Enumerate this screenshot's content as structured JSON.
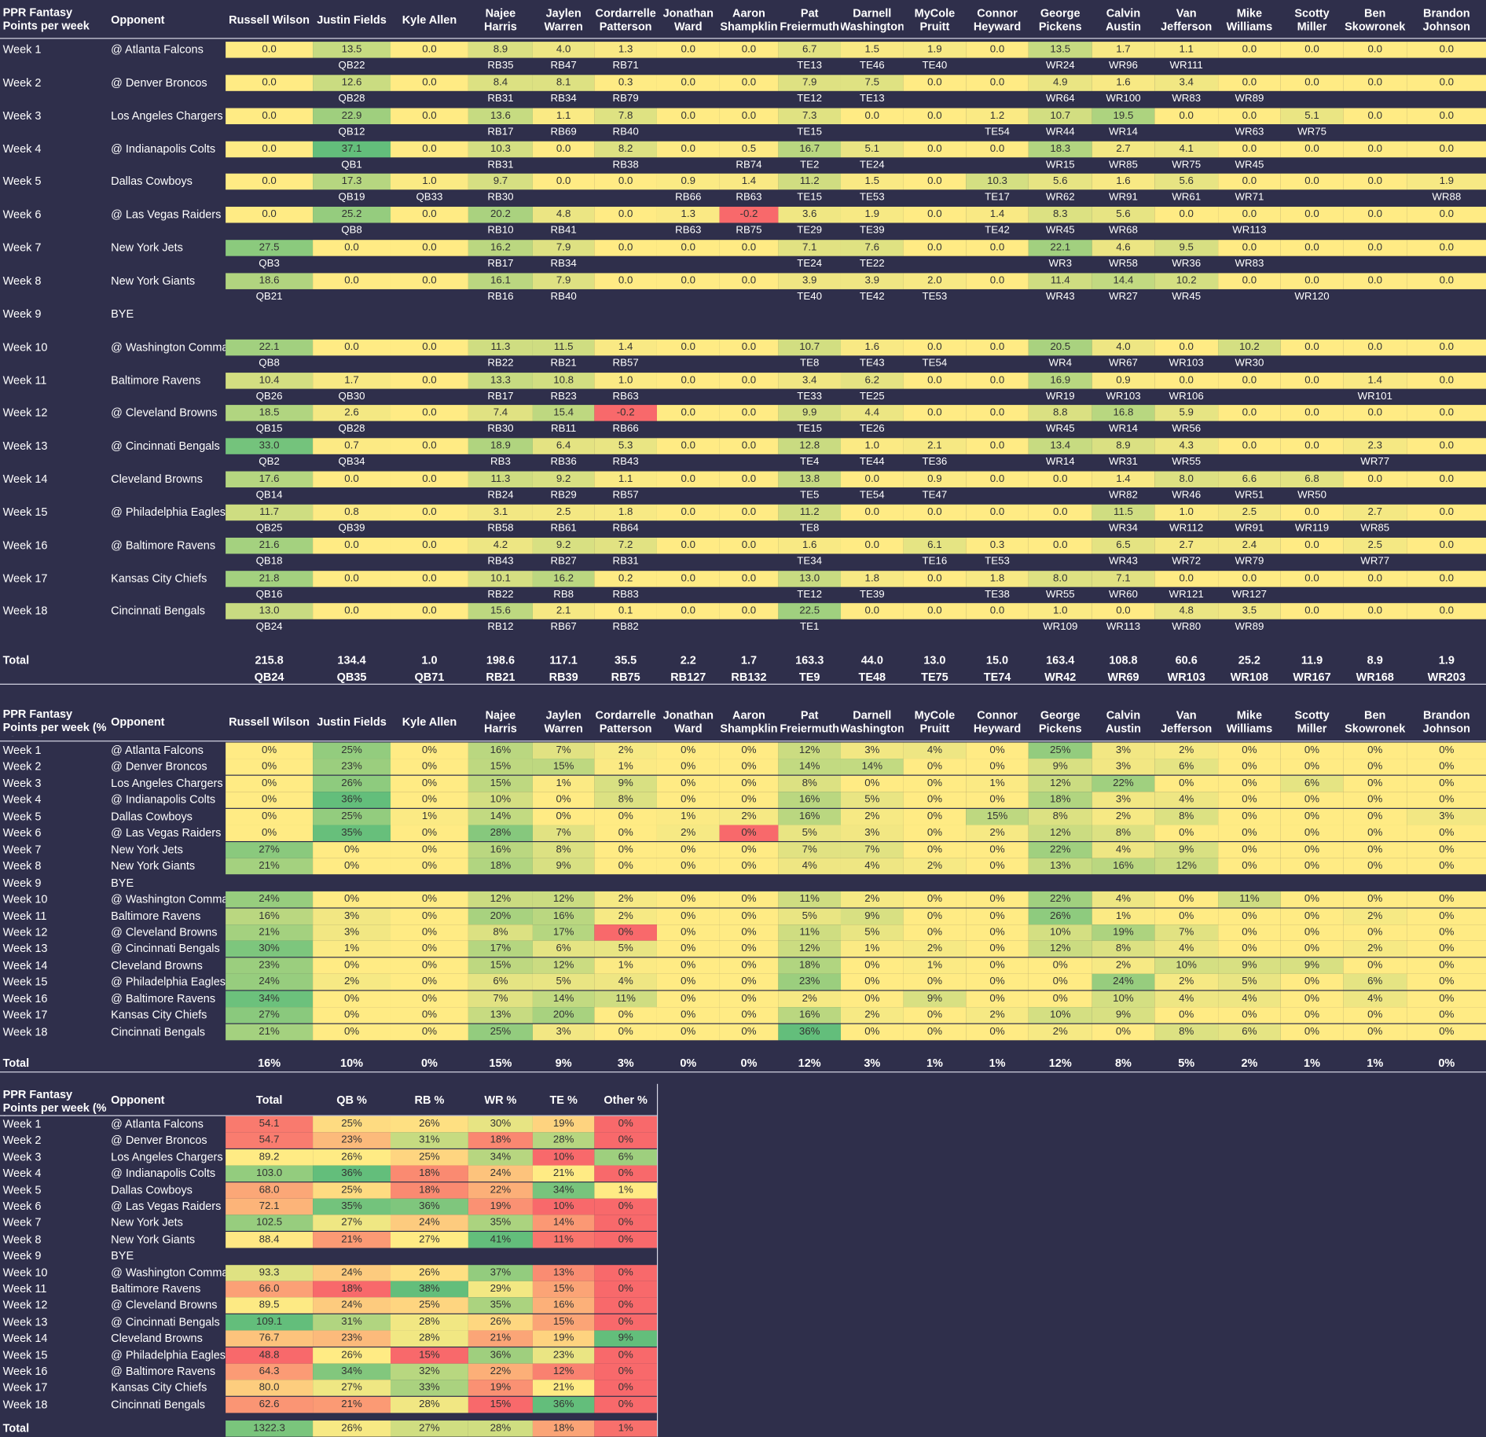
{
  "weeks": [
    "Week 1",
    "Week 2",
    "Week 3",
    "Week 4",
    "Week 5",
    "Week 6",
    "Week 7",
    "Week 8",
    "Week 9",
    "Week 10",
    "Week 11",
    "Week 12",
    "Week 13",
    "Week 14",
    "Week 15",
    "Week 16",
    "Week 17",
    "Week 18"
  ],
  "opponents": [
    "@ Atlanta Falcons",
    "@ Denver Broncos",
    "Los Angeles Chargers",
    "@ Indianapolis Colts",
    "Dallas Cowboys",
    "@ Las Vegas Raiders",
    "New York Jets",
    "New York Giants",
    "BYE",
    "@ Washington Commanders",
    "Baltimore Ravens",
    "@ Cleveland Browns",
    "@ Cincinnati Bengals",
    "Cleveland Browns",
    "@ Philadelphia Eagles",
    "@ Baltimore Ravens",
    "Kansas City Chiefs",
    "Cincinnati Bengals"
  ],
  "opponent_header": "Opponent",
  "total_label": "Total",
  "players": [
    "Russell Wilson",
    "Justin Fields",
    "Kyle Allen",
    "Najee Harris",
    "Jaylen Warren",
    "Cordarrelle Patterson",
    "Jonathan Ward",
    "Aaron Shampklin",
    "Pat Freiermuth",
    "Darnell Washington",
    "MyCole Pruitt",
    "Connor Heyward",
    "George Pickens",
    "Calvin Austin",
    "Van Jefferson",
    "Mike Williams",
    "Scotty Miller",
    "Ben Skowronek",
    "Brandon Johnson"
  ],
  "colors": {
    "background": "#2f2f4b",
    "yellow": "#ffeb84",
    "green": "#63be7b",
    "red": "#f8696b"
  },
  "table1": {
    "title": "PPR Fantasy Points per week",
    "points": [
      [
        "0.0",
        "13.5",
        "0.0",
        "8.9",
        "4.0",
        "1.3",
        "0.0",
        "0.0",
        "6.7",
        "1.5",
        "1.9",
        "0.0",
        "13.5",
        "1.7",
        "1.1",
        "0.0",
        "0.0",
        "0.0",
        "0.0"
      ],
      [
        "0.0",
        "12.6",
        "0.0",
        "8.4",
        "8.1",
        "0.3",
        "0.0",
        "0.0",
        "7.9",
        "7.5",
        "0.0",
        "0.0",
        "4.9",
        "1.6",
        "3.4",
        "0.0",
        "0.0",
        "0.0",
        "0.0"
      ],
      [
        "0.0",
        "22.9",
        "0.0",
        "13.6",
        "1.1",
        "7.8",
        "0.0",
        "0.0",
        "7.3",
        "0.0",
        "0.0",
        "1.2",
        "10.7",
        "19.5",
        "0.0",
        "0.0",
        "5.1",
        "0.0",
        "0.0"
      ],
      [
        "0.0",
        "37.1",
        "0.0",
        "10.3",
        "0.0",
        "8.2",
        "0.0",
        "0.5",
        "16.7",
        "5.1",
        "0.0",
        "0.0",
        "18.3",
        "2.7",
        "4.1",
        "0.0",
        "0.0",
        "0.0",
        "0.0"
      ],
      [
        "0.0",
        "17.3",
        "1.0",
        "9.7",
        "0.0",
        "0.0",
        "0.9",
        "1.4",
        "11.2",
        "1.5",
        "0.0",
        "10.3",
        "5.6",
        "1.6",
        "5.6",
        "0.0",
        "0.0",
        "0.0",
        "1.9"
      ],
      [
        "0.0",
        "25.2",
        "0.0",
        "20.2",
        "4.8",
        "0.0",
        "1.3",
        "-0.2",
        "3.6",
        "1.9",
        "0.0",
        "1.4",
        "8.3",
        "5.6",
        "0.0",
        "0.0",
        "0.0",
        "0.0",
        "0.0"
      ],
      [
        "27.5",
        "0.0",
        "0.0",
        "16.2",
        "7.9",
        "0.0",
        "0.0",
        "0.0",
        "7.1",
        "7.6",
        "0.0",
        "0.0",
        "22.1",
        "4.6",
        "9.5",
        "0.0",
        "0.0",
        "0.0",
        "0.0"
      ],
      [
        "18.6",
        "0.0",
        "0.0",
        "16.1",
        "7.9",
        "0.0",
        "0.0",
        "0.0",
        "3.9",
        "3.9",
        "2.0",
        "0.0",
        "11.4",
        "14.4",
        "10.2",
        "0.0",
        "0.0",
        "0.0",
        "0.0"
      ],
      null,
      [
        "22.1",
        "0.0",
        "0.0",
        "11.3",
        "11.5",
        "1.4",
        "0.0",
        "0.0",
        "10.7",
        "1.6",
        "0.0",
        "0.0",
        "20.5",
        "4.0",
        "0.0",
        "10.2",
        "0.0",
        "0.0",
        "0.0"
      ],
      [
        "10.4",
        "1.7",
        "0.0",
        "13.3",
        "10.8",
        "1.0",
        "0.0",
        "0.0",
        "3.4",
        "6.2",
        "0.0",
        "0.0",
        "16.9",
        "0.9",
        "0.0",
        "0.0",
        "0.0",
        "1.4",
        "0.0"
      ],
      [
        "18.5",
        "2.6",
        "0.0",
        "7.4",
        "15.4",
        "-0.2",
        "0.0",
        "0.0",
        "9.9",
        "4.4",
        "0.0",
        "0.0",
        "8.8",
        "16.8",
        "5.9",
        "0.0",
        "0.0",
        "0.0",
        "0.0"
      ],
      [
        "33.0",
        "0.7",
        "0.0",
        "18.9",
        "6.4",
        "5.3",
        "0.0",
        "0.0",
        "12.8",
        "1.0",
        "2.1",
        "0.0",
        "13.4",
        "8.9",
        "4.3",
        "0.0",
        "0.0",
        "2.3",
        "0.0"
      ],
      [
        "17.6",
        "0.0",
        "0.0",
        "11.3",
        "9.2",
        "1.1",
        "0.0",
        "0.0",
        "13.8",
        "0.0",
        "0.9",
        "0.0",
        "0.0",
        "1.4",
        "8.0",
        "6.6",
        "6.8",
        "0.0",
        "0.0"
      ],
      [
        "11.7",
        "0.8",
        "0.0",
        "3.1",
        "2.5",
        "1.8",
        "0.0",
        "0.0",
        "11.2",
        "0.0",
        "0.0",
        "0.0",
        "0.0",
        "11.5",
        "1.0",
        "2.5",
        "0.0",
        "2.7",
        "0.0"
      ],
      [
        "21.6",
        "0.0",
        "0.0",
        "4.2",
        "9.2",
        "7.2",
        "0.0",
        "0.0",
        "1.6",
        "0.0",
        "6.1",
        "0.3",
        "0.0",
        "6.5",
        "2.7",
        "2.4",
        "0.0",
        "2.5",
        "0.0"
      ],
      [
        "21.8",
        "0.0",
        "0.0",
        "10.1",
        "16.2",
        "0.2",
        "0.0",
        "0.0",
        "13.0",
        "1.8",
        "0.0",
        "1.8",
        "8.0",
        "7.1",
        "0.0",
        "0.0",
        "0.0",
        "0.0",
        "0.0"
      ],
      [
        "13.0",
        "0.0",
        "0.0",
        "15.6",
        "2.1",
        "0.1",
        "0.0",
        "0.0",
        "22.5",
        "0.0",
        "0.0",
        "0.0",
        "1.0",
        "0.0",
        "4.8",
        "3.5",
        "0.0",
        "0.0",
        "0.0"
      ]
    ],
    "ranks": [
      [
        "",
        "QB22",
        "",
        "RB35",
        "RB47",
        "RB71",
        "",
        "",
        "TE13",
        "TE46",
        "TE40",
        "",
        "WR24",
        "WR96",
        "WR111",
        "",
        "",
        "",
        ""
      ],
      [
        "",
        "QB28",
        "",
        "RB31",
        "RB34",
        "RB79",
        "",
        "",
        "TE12",
        "TE13",
        "",
        "",
        "WR64",
        "WR100",
        "WR83",
        "WR89",
        "",
        "",
        ""
      ],
      [
        "",
        "QB12",
        "",
        "RB17",
        "RB69",
        "RB40",
        "",
        "",
        "TE15",
        "",
        "",
        "TE54",
        "WR44",
        "WR14",
        "",
        "WR63",
        "WR75",
        "",
        ""
      ],
      [
        "",
        "QB1",
        "",
        "RB31",
        "",
        "RB38",
        "",
        "RB74",
        "TE2",
        "TE24",
        "",
        "",
        "WR15",
        "WR85",
        "WR75",
        "WR45",
        "",
        "",
        ""
      ],
      [
        "",
        "QB19",
        "QB33",
        "RB30",
        "",
        "",
        "RB66",
        "RB63",
        "TE15",
        "TE53",
        "",
        "TE17",
        "WR62",
        "WR91",
        "WR61",
        "WR71",
        "",
        "",
        "WR88"
      ],
      [
        "",
        "QB8",
        "",
        "RB10",
        "RB41",
        "",
        "RB63",
        "RB75",
        "TE29",
        "TE39",
        "",
        "TE42",
        "WR45",
        "WR68",
        "",
        "WR113",
        "",
        "",
        ""
      ],
      [
        "QB3",
        "",
        "",
        "RB17",
        "RB34",
        "",
        "",
        "",
        "TE24",
        "TE22",
        "",
        "",
        "WR3",
        "WR58",
        "WR36",
        "WR83",
        "",
        "",
        ""
      ],
      [
        "QB21",
        "",
        "",
        "RB16",
        "RB40",
        "",
        "",
        "",
        "TE40",
        "TE42",
        "TE53",
        "",
        "WR43",
        "WR27",
        "WR45",
        "",
        "WR120",
        "",
        ""
      ],
      null,
      [
        "QB8",
        "",
        "",
        "RB22",
        "RB21",
        "RB57",
        "",
        "",
        "TE8",
        "TE43",
        "TE54",
        "",
        "WR4",
        "WR67",
        "WR103",
        "WR30",
        "",
        "",
        ""
      ],
      [
        "QB26",
        "QB30",
        "",
        "RB17",
        "RB23",
        "RB63",
        "",
        "",
        "TE33",
        "TE25",
        "",
        "",
        "WR19",
        "WR103",
        "WR106",
        "",
        "",
        "WR101",
        ""
      ],
      [
        "QB15",
        "QB28",
        "",
        "RB30",
        "RB11",
        "RB66",
        "",
        "",
        "TE15",
        "TE26",
        "",
        "",
        "WR45",
        "WR14",
        "WR56",
        "",
        "",
        "",
        ""
      ],
      [
        "QB2",
        "QB34",
        "",
        "RB3",
        "RB36",
        "RB43",
        "",
        "",
        "TE4",
        "TE44",
        "TE36",
        "",
        "WR14",
        "WR31",
        "WR55",
        "",
        "",
        "WR77",
        ""
      ],
      [
        "QB14",
        "",
        "",
        "RB24",
        "RB29",
        "RB57",
        "",
        "",
        "TE5",
        "TE54",
        "TE47",
        "",
        "",
        "WR82",
        "WR46",
        "WR51",
        "WR50",
        "",
        ""
      ],
      [
        "QB25",
        "QB39",
        "",
        "RB58",
        "RB61",
        "RB64",
        "",
        "",
        "TE8",
        "",
        "",
        "",
        "",
        "WR34",
        "WR112",
        "WR91",
        "WR119",
        "WR85",
        ""
      ],
      [
        "QB18",
        "",
        "",
        "RB43",
        "RB27",
        "RB31",
        "",
        "",
        "TE34",
        "",
        "TE16",
        "TE53",
        "",
        "WR43",
        "WR72",
        "WR79",
        "",
        "WR77",
        ""
      ],
      [
        "QB16",
        "",
        "",
        "RB22",
        "RB8",
        "RB83",
        "",
        "",
        "TE12",
        "TE39",
        "",
        "TE38",
        "WR55",
        "WR60",
        "WR121",
        "WR127",
        "",
        "",
        ""
      ],
      [
        "QB24",
        "",
        "",
        "RB12",
        "RB67",
        "RB82",
        "",
        "",
        "TE1",
        "",
        "",
        "",
        "WR109",
        "WR113",
        "WR80",
        "WR89",
        "",
        "",
        ""
      ]
    ],
    "totals": [
      "215.8",
      "134.4",
      "1.0",
      "198.6",
      "117.1",
      "35.5",
      "2.2",
      "1.7",
      "163.3",
      "44.0",
      "13.0",
      "15.0",
      "163.4",
      "108.8",
      "60.6",
      "25.2",
      "11.9",
      "8.9",
      "1.9"
    ],
    "total_ranks": [
      "QB24",
      "QB35",
      "QB71",
      "RB21",
      "RB39",
      "RB75",
      "RB127",
      "RB132",
      "TE9",
      "TE48",
      "TE75",
      "TE74",
      "WR42",
      "WR69",
      "WR103",
      "WR108",
      "WR167",
      "WR168",
      "WR203"
    ]
  },
  "table2": {
    "title": "PPR Fantasy Points per week (% of total)",
    "pct": [
      [
        "0%",
        "25%",
        "0%",
        "16%",
        "7%",
        "2%",
        "0%",
        "0%",
        "12%",
        "3%",
        "4%",
        "0%",
        "25%",
        "3%",
        "2%",
        "0%",
        "0%",
        "0%",
        "0%"
      ],
      [
        "0%",
        "23%",
        "0%",
        "15%",
        "15%",
        "1%",
        "0%",
        "0%",
        "14%",
        "14%",
        "0%",
        "0%",
        "9%",
        "3%",
        "6%",
        "0%",
        "0%",
        "0%",
        "0%"
      ],
      [
        "0%",
        "26%",
        "0%",
        "15%",
        "1%",
        "9%",
        "0%",
        "0%",
        "8%",
        "0%",
        "0%",
        "1%",
        "12%",
        "22%",
        "0%",
        "0%",
        "6%",
        "0%",
        "0%"
      ],
      [
        "0%",
        "36%",
        "0%",
        "10%",
        "0%",
        "8%",
        "0%",
        "0%",
        "16%",
        "5%",
        "0%",
        "0%",
        "18%",
        "3%",
        "4%",
        "0%",
        "0%",
        "0%",
        "0%"
      ],
      [
        "0%",
        "25%",
        "1%",
        "14%",
        "0%",
        "0%",
        "1%",
        "2%",
        "16%",
        "2%",
        "0%",
        "15%",
        "8%",
        "2%",
        "8%",
        "0%",
        "0%",
        "0%",
        "3%"
      ],
      [
        "0%",
        "35%",
        "0%",
        "28%",
        "7%",
        "0%",
        "2%",
        "0%",
        "5%",
        "3%",
        "0%",
        "2%",
        "12%",
        "8%",
        "0%",
        "0%",
        "0%",
        "0%",
        "0%"
      ],
      [
        "27%",
        "0%",
        "0%",
        "16%",
        "8%",
        "0%",
        "0%",
        "0%",
        "7%",
        "7%",
        "0%",
        "0%",
        "22%",
        "4%",
        "9%",
        "0%",
        "0%",
        "0%",
        "0%"
      ],
      [
        "21%",
        "0%",
        "0%",
        "18%",
        "9%",
        "0%",
        "0%",
        "0%",
        "4%",
        "4%",
        "2%",
        "0%",
        "13%",
        "16%",
        "12%",
        "0%",
        "0%",
        "0%",
        "0%"
      ],
      null,
      [
        "24%",
        "0%",
        "0%",
        "12%",
        "12%",
        "2%",
        "0%",
        "0%",
        "11%",
        "2%",
        "0%",
        "0%",
        "22%",
        "4%",
        "0%",
        "11%",
        "0%",
        "0%",
        "0%"
      ],
      [
        "16%",
        "3%",
        "0%",
        "20%",
        "16%",
        "2%",
        "0%",
        "0%",
        "5%",
        "9%",
        "0%",
        "0%",
        "26%",
        "1%",
        "0%",
        "0%",
        "0%",
        "2%",
        "0%"
      ],
      [
        "21%",
        "3%",
        "0%",
        "8%",
        "17%",
        "0%",
        "0%",
        "0%",
        "11%",
        "5%",
        "0%",
        "0%",
        "10%",
        "19%",
        "7%",
        "0%",
        "0%",
        "0%",
        "0%"
      ],
      [
        "30%",
        "1%",
        "0%",
        "17%",
        "6%",
        "5%",
        "0%",
        "0%",
        "12%",
        "1%",
        "2%",
        "0%",
        "12%",
        "8%",
        "4%",
        "0%",
        "0%",
        "2%",
        "0%"
      ],
      [
        "23%",
        "0%",
        "0%",
        "15%",
        "12%",
        "1%",
        "0%",
        "0%",
        "18%",
        "0%",
        "1%",
        "0%",
        "0%",
        "2%",
        "10%",
        "9%",
        "9%",
        "0%",
        "0%"
      ],
      [
        "24%",
        "2%",
        "0%",
        "6%",
        "5%",
        "4%",
        "0%",
        "0%",
        "23%",
        "0%",
        "0%",
        "0%",
        "0%",
        "24%",
        "2%",
        "5%",
        "0%",
        "6%",
        "0%"
      ],
      [
        "34%",
        "0%",
        "0%",
        "7%",
        "14%",
        "11%",
        "0%",
        "0%",
        "2%",
        "0%",
        "9%",
        "0%",
        "0%",
        "10%",
        "4%",
        "4%",
        "0%",
        "4%",
        "0%"
      ],
      [
        "27%",
        "0%",
        "0%",
        "13%",
        "20%",
        "0%",
        "0%",
        "0%",
        "16%",
        "2%",
        "0%",
        "2%",
        "10%",
        "9%",
        "0%",
        "0%",
        "0%",
        "0%",
        "0%"
      ],
      [
        "21%",
        "0%",
        "0%",
        "25%",
        "3%",
        "0%",
        "0%",
        "0%",
        "36%",
        "0%",
        "0%",
        "0%",
        "2%",
        "0%",
        "8%",
        "6%",
        "0%",
        "0%",
        "0%"
      ]
    ],
    "totals": [
      "16%",
      "10%",
      "0%",
      "15%",
      "9%",
      "3%",
      "0%",
      "0%",
      "12%",
      "3%",
      "1%",
      "1%",
      "12%",
      "8%",
      "5%",
      "2%",
      "1%",
      "1%",
      "0%"
    ]
  },
  "table3": {
    "title": "PPR Fantasy Points per week (% by pos)",
    "headers": [
      "Total",
      "QB %",
      "RB %",
      "WR %",
      "TE %",
      "Other %"
    ],
    "rows": [
      [
        "54.1",
        "25%",
        "26%",
        "30%",
        "19%",
        "0%"
      ],
      [
        "54.7",
        "23%",
        "31%",
        "18%",
        "28%",
        "0%"
      ],
      [
        "89.2",
        "26%",
        "25%",
        "34%",
        "10%",
        "6%"
      ],
      [
        "103.0",
        "36%",
        "18%",
        "24%",
        "21%",
        "0%"
      ],
      [
        "68.0",
        "25%",
        "18%",
        "22%",
        "34%",
        "1%"
      ],
      [
        "72.1",
        "35%",
        "36%",
        "19%",
        "10%",
        "0%"
      ],
      [
        "102.5",
        "27%",
        "24%",
        "35%",
        "14%",
        "0%"
      ],
      [
        "88.4",
        "21%",
        "27%",
        "41%",
        "11%",
        "0%"
      ],
      null,
      [
        "93.3",
        "24%",
        "26%",
        "37%",
        "13%",
        "0%"
      ],
      [
        "66.0",
        "18%",
        "38%",
        "29%",
        "15%",
        "0%"
      ],
      [
        "89.5",
        "24%",
        "25%",
        "35%",
        "16%",
        "0%"
      ],
      [
        "109.1",
        "31%",
        "28%",
        "26%",
        "15%",
        "0%"
      ],
      [
        "76.7",
        "23%",
        "28%",
        "21%",
        "19%",
        "9%"
      ],
      [
        "48.8",
        "26%",
        "15%",
        "36%",
        "23%",
        "0%"
      ],
      [
        "64.3",
        "34%",
        "32%",
        "22%",
        "12%",
        "0%"
      ],
      [
        "80.0",
        "27%",
        "33%",
        "19%",
        "21%",
        "0%"
      ],
      [
        "62.6",
        "21%",
        "28%",
        "15%",
        "36%",
        "0%"
      ]
    ],
    "totals": [
      "1322.3",
      "26%",
      "27%",
      "28%",
      "18%",
      "1%"
    ]
  }
}
